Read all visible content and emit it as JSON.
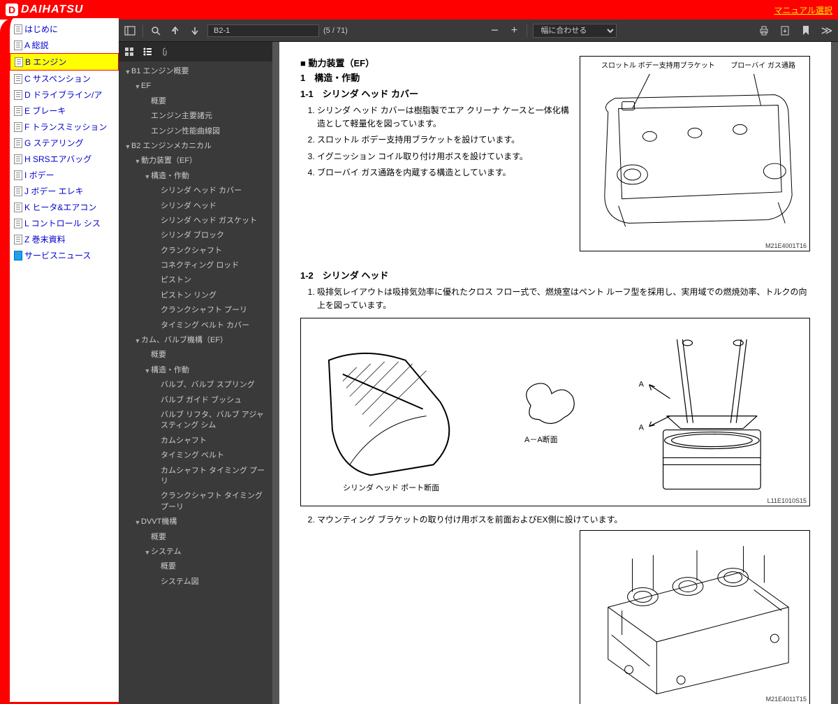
{
  "header": {
    "brand": "DAIHATSU",
    "manual_select": "マニュアル選択"
  },
  "left_nav": {
    "items": [
      {
        "label": "はじめに",
        "selected": false
      },
      {
        "label": "A 総説",
        "selected": false
      },
      {
        "label": "B エンジン",
        "selected": true
      },
      {
        "label": "C サスペンション",
        "selected": false
      },
      {
        "label": "D ドライブライン/ア",
        "selected": false
      },
      {
        "label": "E ブレーキ",
        "selected": false
      },
      {
        "label": "F トランスミッション",
        "selected": false
      },
      {
        "label": "G ステアリング",
        "selected": false
      },
      {
        "label": "H SRSエアバッグ",
        "selected": false
      },
      {
        "label": "I ボデー",
        "selected": false
      },
      {
        "label": "J ボデー エレキ",
        "selected": false
      },
      {
        "label": "K ヒータ&エアコン",
        "selected": false
      },
      {
        "label": "L コントロール シス",
        "selected": false
      },
      {
        "label": "Z 巻末資料",
        "selected": false
      },
      {
        "label": "サービスニュース",
        "selected": false,
        "service": true
      }
    ]
  },
  "pdf_toolbar": {
    "page_label": "B2-1",
    "page_count": "(5 / 71)",
    "zoom_label": "幅に合わせる"
  },
  "outline": {
    "items": [
      {
        "indent": 0,
        "toggle": "▼",
        "label": "B1 エンジン概要"
      },
      {
        "indent": 1,
        "toggle": "▼",
        "label": "EF"
      },
      {
        "indent": 2,
        "toggle": "",
        "label": "概要"
      },
      {
        "indent": 2,
        "toggle": "",
        "label": "エンジン主要諸元"
      },
      {
        "indent": 2,
        "toggle": "",
        "label": "エンジン性能曲線図"
      },
      {
        "indent": 0,
        "toggle": "▼",
        "label": "B2 エンジンメカニカル"
      },
      {
        "indent": 1,
        "toggle": "▼",
        "label": "動力装置（EF）"
      },
      {
        "indent": 2,
        "toggle": "▼",
        "label": "構造・作動"
      },
      {
        "indent": 3,
        "toggle": "",
        "label": "シリンダ ヘッド カバー"
      },
      {
        "indent": 3,
        "toggle": "",
        "label": "シリンダ ヘッド"
      },
      {
        "indent": 3,
        "toggle": "",
        "label": "シリンダ ヘッド ガスケット"
      },
      {
        "indent": 3,
        "toggle": "",
        "label": "シリンダ ブロック"
      },
      {
        "indent": 3,
        "toggle": "",
        "label": "クランクシャフト"
      },
      {
        "indent": 3,
        "toggle": "",
        "label": "コネクティング ロッド"
      },
      {
        "indent": 3,
        "toggle": "",
        "label": "ピストン"
      },
      {
        "indent": 3,
        "toggle": "",
        "label": "ピストン リング"
      },
      {
        "indent": 3,
        "toggle": "",
        "label": "クランクシャフト プーリ"
      },
      {
        "indent": 3,
        "toggle": "",
        "label": "タイミング ベルト カバー"
      },
      {
        "indent": 1,
        "toggle": "▼",
        "label": "カム、バルブ機構（EF）"
      },
      {
        "indent": 2,
        "toggle": "",
        "label": "概要"
      },
      {
        "indent": 2,
        "toggle": "▼",
        "label": "構造・作動"
      },
      {
        "indent": 3,
        "toggle": "",
        "label": "バルブ、バルブ スプリング"
      },
      {
        "indent": 3,
        "toggle": "",
        "label": "バルブ ガイド ブッシュ"
      },
      {
        "indent": 3,
        "toggle": "",
        "label": "バルブ リフタ、バルブ アジャスティング シム"
      },
      {
        "indent": 3,
        "toggle": "",
        "label": "カムシャフト"
      },
      {
        "indent": 3,
        "toggle": "",
        "label": "タイミング ベルト"
      },
      {
        "indent": 3,
        "toggle": "",
        "label": "カムシャフト タイミング プーリ"
      },
      {
        "indent": 3,
        "toggle": "",
        "label": "クランクシャフト タイミング プーリ"
      },
      {
        "indent": 1,
        "toggle": "▼",
        "label": "DVVT機構"
      },
      {
        "indent": 2,
        "toggle": "",
        "label": "概要"
      },
      {
        "indent": 2,
        "toggle": "▼",
        "label": "システム"
      },
      {
        "indent": 3,
        "toggle": "",
        "label": "概要"
      },
      {
        "indent": 3,
        "toggle": "",
        "label": "システム図"
      }
    ]
  },
  "document": {
    "section_title": "■ 動力装置（EF）",
    "h1": "1　構造・作動",
    "s11_title": "1-1　シリンダ ヘッド カバー",
    "s11_items": [
      "シリンダ ヘッド カバーは樹脂製でエア クリーナ ケースと一体化構造として軽量化を図っています。",
      "スロットル ボデー支持用ブラケットを設けています。",
      "イグニッション コイル取り付け用ボスを設けています。",
      "ブローバイ ガス通路を内蔵する構造としています。"
    ],
    "fig1_label1": "スロットル ボデー支持用ブラケット",
    "fig1_label2": "ブローバイ ガス通路",
    "fig1_code": "M21E4001T16",
    "s12_title": "1-2　シリンダ ヘッド",
    "s12_item1": "吸排気レイアウトは吸排気効率に優れたクロス フロー式で、燃焼室はペント ルーフ型を採用し、実用域での燃焼効率、トルクの向上を図っています。",
    "fig2_caption1": "シリンダ ヘッド ポート断面",
    "fig2_caption2": "A－A断面",
    "fig2_code": "L11E1010S15",
    "s12_item2": "マウンティング ブラケットの取り付け用ボスを前面およびEX側に設けています。",
    "fig3_code": "M21E4011T15"
  }
}
